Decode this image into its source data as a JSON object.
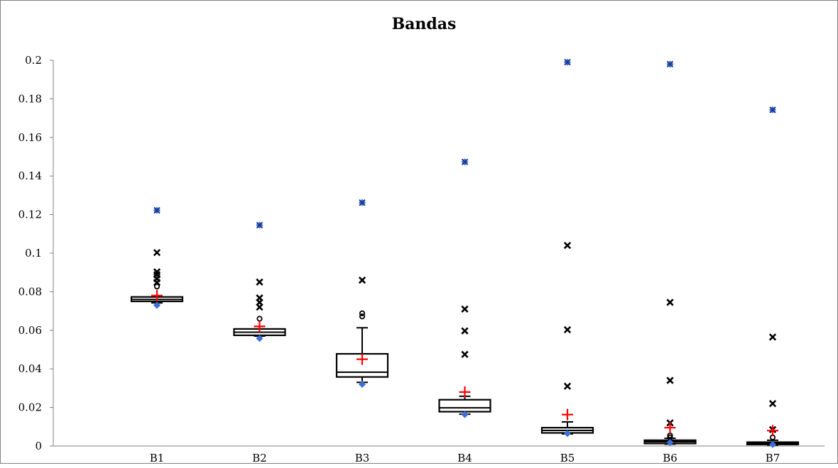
{
  "chart_data": {
    "type": "box",
    "title": "Bandas",
    "xlabel": "",
    "ylabel": "",
    "categories": [
      "B1",
      "B2",
      "B3",
      "B4",
      "B5",
      "B6",
      "B7"
    ],
    "ylim": [
      0,
      0.2
    ],
    "yticks": [
      "0",
      "0.02",
      "0.04",
      "0.06",
      "0.08",
      "0.1",
      "0.12",
      "0.14",
      "0.16",
      "0.18",
      "0.2"
    ],
    "grid": false,
    "legend": "none",
    "colors": {
      "box": "#000000",
      "mean": "#ff0000",
      "extreme": "#3d6fdc",
      "outlier": "#000000"
    },
    "boxes": [
      {
        "name": "B1",
        "q1": 0.075,
        "median": 0.076,
        "q3": 0.0773,
        "whisker_low": 0.0742,
        "whisker_high": 0.0775,
        "mean": 0.078,
        "min": 0.073,
        "max": 0.1222,
        "outliers_x": [
          0.1003,
          0.0903,
          0.0888,
          0.0868,
          0.0848
        ],
        "outliers_o": [
          0.0827
        ]
      },
      {
        "name": "B2",
        "q1": 0.0574,
        "median": 0.059,
        "q3": 0.0607,
        "whisker_low": 0.057,
        "whisker_high": 0.062,
        "mean": 0.062,
        "min": 0.0558,
        "max": 0.1145,
        "outliers_x": [
          0.085,
          0.0768,
          0.0745,
          0.072
        ],
        "outliers_o": [
          0.066
        ]
      },
      {
        "name": "B3",
        "q1": 0.0358,
        "median": 0.0383,
        "q3": 0.0478,
        "whisker_low": 0.033,
        "whisker_high": 0.0613,
        "mean": 0.045,
        "min": 0.032,
        "max": 0.1262,
        "outliers_x": [
          0.086
        ],
        "outliers_o": [
          0.0688,
          0.0672
        ]
      },
      {
        "name": "B4",
        "q1": 0.0178,
        "median": 0.0198,
        "q3": 0.024,
        "whisker_low": 0.0165,
        "whisker_high": 0.0258,
        "mean": 0.028,
        "min": 0.0163,
        "max": 0.1473,
        "outliers_x": [
          0.071,
          0.0597,
          0.0475
        ],
        "outliers_o": []
      },
      {
        "name": "B5",
        "q1": 0.0068,
        "median": 0.0081,
        "q3": 0.0095,
        "whisker_low": 0.0063,
        "whisker_high": 0.0125,
        "mean": 0.0163,
        "min": 0.0065,
        "max": 0.199,
        "outliers_x": [
          0.104,
          0.0603,
          0.031
        ],
        "outliers_o": []
      },
      {
        "name": "B6",
        "q1": 0.0013,
        "median": 0.0022,
        "q3": 0.003,
        "whisker_low": 0.001,
        "whisker_high": 0.004,
        "mean": 0.0095,
        "min": 0.0018,
        "max": 0.198,
        "outliers_x": [
          0.0745,
          0.034,
          0.012
        ],
        "outliers_o": [
          0.0055,
          0.0045
        ]
      },
      {
        "name": "B7",
        "q1": 0.0008,
        "median": 0.0013,
        "q3": 0.002,
        "whisker_low": 0.0005,
        "whisker_high": 0.003,
        "mean": 0.008,
        "min": 0.0008,
        "max": 0.1743,
        "outliers_x": [
          0.0565,
          0.022,
          0.0085
        ],
        "outliers_o": [
          0.0045
        ]
      }
    ]
  }
}
